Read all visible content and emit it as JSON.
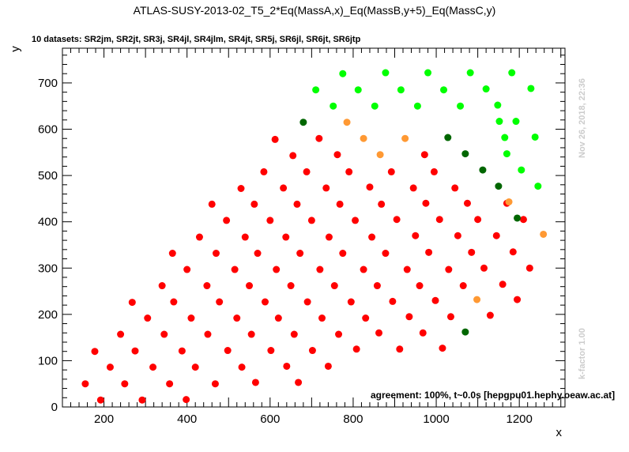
{
  "chart_data": {
    "type": "scatter",
    "title": "ATLAS-SUSY-2013-02_T5_2*Eq(MassA,x)_Eq(MassB,y+5)_Eq(MassC,y)",
    "subtitle": "10 datasets: SR2jm, SR2jt, SR3j, SR4jl, SR4jlm, SR4jt, SR5j, SR6jl, SR6jt, SR6jtp",
    "xlabel": "x",
    "ylabel": "y",
    "xlim": [
      100,
      1310
    ],
    "ylim": [
      0,
      775
    ],
    "x_ticks": [
      200,
      400,
      600,
      800,
      1000,
      1200
    ],
    "y_ticks": [
      0,
      100,
      200,
      300,
      400,
      500,
      600,
      700
    ],
    "grid": false,
    "annotations": {
      "agreement": "agreement: 100%, t~0.0s [hepgpu01.hephy.oeaw.ac.at]",
      "timestamp": "Nov 26, 2018, 22:36",
      "kfactor": "k-factor 1.00"
    },
    "colors": {
      "excluded": "#ff0000",
      "allowed": "#00ff00",
      "excluded_border": "#ff9933",
      "allowed_border": "#006600"
    },
    "series": [
      {
        "color": "#ff0000",
        "points": [
          [
            155,
            50
          ],
          [
            178,
            120
          ],
          [
            192,
            15
          ],
          [
            215,
            86
          ],
          [
            240,
            157
          ],
          [
            250,
            50
          ],
          [
            268,
            226
          ],
          [
            275,
            121
          ],
          [
            292,
            15
          ],
          [
            305,
            192
          ],
          [
            318,
            86
          ],
          [
            340,
            262
          ],
          [
            345,
            157
          ],
          [
            358,
            50
          ],
          [
            365,
            332
          ],
          [
            368,
            227
          ],
          [
            388,
            121
          ],
          [
            398,
            16
          ],
          [
            400,
            297
          ],
          [
            410,
            192
          ],
          [
            420,
            86
          ],
          [
            430,
            367
          ],
          [
            448,
            262
          ],
          [
            450,
            157
          ],
          [
            460,
            438
          ],
          [
            468,
            50
          ],
          [
            470,
            332
          ],
          [
            478,
            227
          ],
          [
            495,
            403
          ],
          [
            498,
            122
          ],
          [
            515,
            297
          ],
          [
            520,
            192
          ],
          [
            530,
            472
          ],
          [
            532,
            86
          ],
          [
            540,
            367
          ],
          [
            550,
            262
          ],
          [
            555,
            157
          ],
          [
            562,
            438
          ],
          [
            565,
            53
          ],
          [
            570,
            332
          ],
          [
            585,
            508
          ],
          [
            588,
            227
          ],
          [
            600,
            403
          ],
          [
            602,
            122
          ],
          [
            612,
            578
          ],
          [
            615,
            297
          ],
          [
            620,
            192
          ],
          [
            632,
            473
          ],
          [
            638,
            367
          ],
          [
            640,
            88
          ],
          [
            650,
            262
          ],
          [
            655,
            543
          ],
          [
            658,
            157
          ],
          [
            665,
            438
          ],
          [
            668,
            53
          ],
          [
            672,
            332
          ],
          [
            688,
            508
          ],
          [
            690,
            227
          ],
          [
            700,
            403
          ],
          [
            702,
            122
          ],
          [
            718,
            580
          ],
          [
            720,
            297
          ],
          [
            725,
            192
          ],
          [
            735,
            473
          ],
          [
            740,
            88
          ],
          [
            742,
            367
          ],
          [
            755,
            262
          ],
          [
            762,
            545
          ],
          [
            765,
            157
          ],
          [
            768,
            438
          ],
          [
            775,
            332
          ],
          [
            790,
            508
          ],
          [
            795,
            227
          ],
          [
            805,
            403
          ],
          [
            808,
            125
          ],
          [
            825,
            297
          ],
          [
            830,
            192
          ],
          [
            840,
            475
          ],
          [
            845,
            367
          ],
          [
            858,
            262
          ],
          [
            862,
            160
          ],
          [
            868,
            438
          ],
          [
            878,
            332
          ],
          [
            892,
            508
          ],
          [
            895,
            228
          ],
          [
            905,
            405
          ],
          [
            912,
            125
          ],
          [
            930,
            297
          ],
          [
            935,
            195
          ],
          [
            945,
            473
          ],
          [
            950,
            370
          ],
          [
            960,
            262
          ],
          [
            968,
            160
          ],
          [
            972,
            545
          ],
          [
            975,
            440
          ],
          [
            982,
            334
          ],
          [
            995,
            508
          ],
          [
            998,
            230
          ],
          [
            1008,
            405
          ],
          [
            1015,
            127
          ],
          [
            1030,
            297
          ],
          [
            1035,
            195
          ],
          [
            1045,
            473
          ],
          [
            1052,
            370
          ],
          [
            1065,
            262
          ],
          [
            1075,
            440
          ],
          [
            1085,
            334
          ],
          [
            1100,
            405
          ],
          [
            1115,
            300
          ],
          [
            1130,
            198
          ],
          [
            1145,
            370
          ],
          [
            1160,
            265
          ],
          [
            1170,
            440
          ],
          [
            1185,
            335
          ],
          [
            1195,
            232
          ],
          [
            1210,
            405
          ],
          [
            1225,
            300
          ]
        ]
      },
      {
        "color": "#00ff00",
        "points": [
          [
            710,
            685
          ],
          [
            752,
            650
          ],
          [
            775,
            720
          ],
          [
            812,
            685
          ],
          [
            852,
            650
          ],
          [
            878,
            722
          ],
          [
            915,
            685
          ],
          [
            955,
            650
          ],
          [
            980,
            722
          ],
          [
            1018,
            685
          ],
          [
            1058,
            650
          ],
          [
            1082,
            722
          ],
          [
            1120,
            687
          ],
          [
            1148,
            652
          ],
          [
            1152,
            617
          ],
          [
            1165,
            582
          ],
          [
            1182,
            722
          ],
          [
            1192,
            617
          ],
          [
            1205,
            512
          ],
          [
            1228,
            688
          ],
          [
            1238,
            583
          ],
          [
            1245,
            477
          ],
          [
            1170,
            547
          ]
        ]
      },
      {
        "color": "#ff9933",
        "points": [
          [
            785,
            615
          ],
          [
            825,
            580
          ],
          [
            865,
            545
          ],
          [
            925,
            580
          ],
          [
            1098,
            232
          ],
          [
            1175,
            443
          ],
          [
            1258,
            373
          ]
        ]
      },
      {
        "color": "#006600",
        "points": [
          [
            680,
            615
          ],
          [
            1028,
            582
          ],
          [
            1070,
            547
          ],
          [
            1112,
            512
          ],
          [
            1150,
            477
          ],
          [
            1195,
            408
          ],
          [
            1070,
            162
          ]
        ]
      }
    ]
  }
}
